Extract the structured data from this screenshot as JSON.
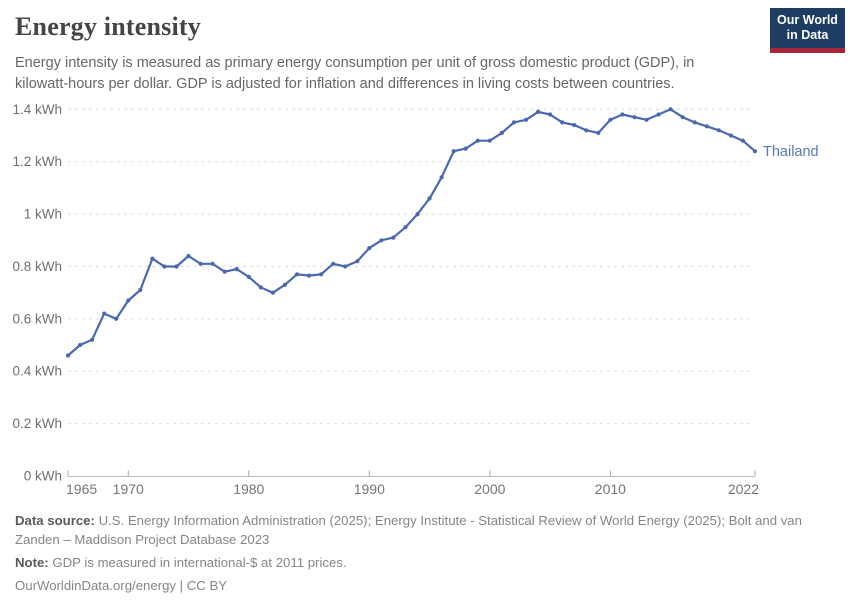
{
  "header": {
    "title": "Energy intensity",
    "subtitle": "Energy intensity is measured as primary energy consumption per unit of gross domestic product (GDP), in kilowatt-hours per dollar. GDP is adjusted for inflation and differences in living costs between countries.",
    "logo": {
      "line1": "Our World",
      "line2": "in Data"
    }
  },
  "chart_data": {
    "type": "line",
    "title": "Energy intensity",
    "xlabel": "",
    "ylabel": "kWh per dollar",
    "xlim": [
      1965,
      2022
    ],
    "ylim": [
      0,
      1.4
    ],
    "grid": "horizontal dashed",
    "x_ticks": [
      1965,
      1970,
      1980,
      1990,
      2000,
      2010,
      2022
    ],
    "y_ticks": [
      {
        "value": 0,
        "label": "0 kWh"
      },
      {
        "value": 0.2,
        "label": "0.2 kWh"
      },
      {
        "value": 0.4,
        "label": "0.4 kWh"
      },
      {
        "value": 0.6,
        "label": "0.6 kWh"
      },
      {
        "value": 0.8,
        "label": "0.8 kWh"
      },
      {
        "value": 1,
        "label": "1 kWh"
      },
      {
        "value": 1.2,
        "label": "1.2 kWh"
      },
      {
        "value": 1.4,
        "label": "1.4 kWh"
      }
    ],
    "series": [
      {
        "name": "Thailand",
        "color": "#4a69ad",
        "label_color": "#5878b8",
        "years": [
          1965,
          1966,
          1967,
          1968,
          1969,
          1970,
          1971,
          1972,
          1973,
          1974,
          1975,
          1976,
          1977,
          1978,
          1979,
          1980,
          1981,
          1982,
          1983,
          1984,
          1985,
          1986,
          1987,
          1988,
          1989,
          1990,
          1991,
          1992,
          1993,
          1994,
          1995,
          1996,
          1997,
          1998,
          1999,
          2000,
          2001,
          2002,
          2003,
          2004,
          2005,
          2006,
          2007,
          2008,
          2009,
          2010,
          2011,
          2012,
          2013,
          2014,
          2015,
          2016,
          2017,
          2018,
          2019,
          2020,
          2021,
          2022
        ],
        "values": [
          0.46,
          0.5,
          0.52,
          0.62,
          0.6,
          0.67,
          0.71,
          0.83,
          0.8,
          0.8,
          0.84,
          0.81,
          0.81,
          0.78,
          0.79,
          0.76,
          0.72,
          0.7,
          0.73,
          0.77,
          0.765,
          0.77,
          0.81,
          0.8,
          0.82,
          0.87,
          0.9,
          0.91,
          0.95,
          1.0,
          1.06,
          1.14,
          1.24,
          1.25,
          1.28,
          1.28,
          1.31,
          1.35,
          1.36,
          1.39,
          1.38,
          1.35,
          1.34,
          1.32,
          1.31,
          1.36,
          1.38,
          1.37,
          1.36,
          1.38,
          1.4,
          1.37,
          1.35,
          1.335,
          1.32,
          1.3,
          1.28,
          1.24
        ]
      }
    ],
    "legend_position": "end-of-line"
  },
  "footer": {
    "data_source_label": "Data source:",
    "data_source_text": "U.S. Energy Information Administration (2025); Energy Institute - Statistical Review of World Energy (2025); Bolt and van Zanden – Maddison Project Database 2023",
    "note_label": "Note:",
    "note_text": "GDP is measured in international-$ at 2011 prices.",
    "attribution_link": "OurWorldinData.org/energy",
    "attribution_suffix": " | CC BY"
  },
  "colors": {
    "line": "#4a69ad",
    "series_label": "#5878b8",
    "logo_bg": "#1d3d63",
    "logo_stripe": "#a52639",
    "gridline": "#dcdcdc",
    "axis": "#bdbdbd",
    "tick": "#a8a8a8",
    "y_label": "#6e6e6e",
    "x_label": "#757575"
  }
}
